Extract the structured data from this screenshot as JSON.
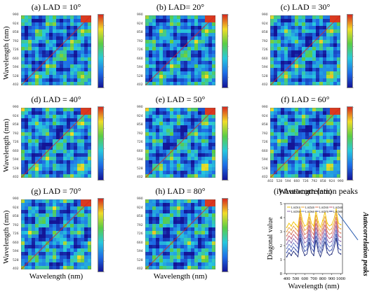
{
  "figure": {
    "panel_titles": [
      "(a) LAD = 10°",
      "(b) LAD= 20°",
      "(c) LAD = 30°",
      "(d) LAD = 40°",
      "(e) LAD = 50°",
      "(f) LAD = 60°",
      "(g) LAD = 70°",
      "(h) LAD = 80°"
    ],
    "ylabel": "Wavelength (nm)",
    "xlabel": "Wavelength (nm)",
    "axis_ticks": [
      "402",
      "528",
      "594",
      "660",
      "726",
      "792",
      "858",
      "924",
      "990"
    ],
    "colors": {
      "low": "#1a1aa8",
      "mid": "#2ecc40",
      "high": "#d7261e"
    }
  },
  "chart_data": [
    {
      "type": "heatmap",
      "title": "(a) LAD = 10°",
      "ylabel": "Wavelength (nm)"
    },
    {
      "type": "heatmap",
      "title": "(b) LAD= 20°"
    },
    {
      "type": "heatmap",
      "title": "(c) LAD = 30°"
    },
    {
      "type": "heatmap",
      "title": "(d) LAD = 40°",
      "ylabel": "Wavelength (nm)"
    },
    {
      "type": "heatmap",
      "title": "(e) LAD = 50°"
    },
    {
      "type": "heatmap",
      "title": "(f) LAD = 60°",
      "xlabel": "Wavelength (nm)"
    },
    {
      "type": "heatmap",
      "title": "(g) LAD = 70°",
      "ylabel": "Wavelength (nm)",
      "xlabel": "Wavelength (nm)"
    },
    {
      "type": "heatmap",
      "title": "(h) LAD = 80°",
      "xlabel": "Wavelength (nm)"
    },
    {
      "type": "line",
      "title": "(i) Autocorrelation peaks",
      "xlabel": "Wavelength (nm)",
      "ylabel": "Diagonal value",
      "annotation": "Autocorrelation peaks",
      "xlim": [
        380,
        1020
      ],
      "ylim": [
        0,
        5
      ],
      "xticks": [
        400,
        500,
        600,
        700,
        800,
        900,
        1000
      ],
      "yticks": [
        0,
        1,
        2,
        3,
        4,
        5
      ],
      "legend": [
        "LAD10",
        "LAD20",
        "LAD30",
        "LAD40",
        "LAD50",
        "LAD60",
        "LAD70",
        "LAD80"
      ],
      "x": [
        400,
        425,
        450,
        475,
        500,
        525,
        550,
        575,
        600,
        625,
        650,
        675,
        700,
        725,
        750,
        775,
        800,
        825,
        850,
        875,
        900,
        925,
        950,
        975,
        1000
      ],
      "series": [
        {
          "name": "LAD10",
          "color": "#f2c300",
          "values": [
            3.3,
            3.6,
            3.4,
            3.7,
            3.5,
            3.3,
            4.6,
            3.8,
            3.4,
            3.5,
            4.3,
            3.6,
            3.4,
            4.5,
            3.7,
            3.3,
            3.8,
            4.4,
            3.6,
            3.4,
            3.5,
            3.9,
            4.6,
            3.6,
            3.5
          ]
        },
        {
          "name": "LAD20",
          "color": "#e8a33d",
          "values": [
            3.0,
            3.3,
            3.1,
            3.4,
            3.2,
            3.0,
            4.3,
            3.5,
            3.1,
            3.2,
            4.0,
            3.3,
            3.1,
            4.2,
            3.4,
            3.0,
            3.5,
            4.1,
            3.3,
            3.1,
            3.2,
            3.6,
            4.3,
            3.3,
            3.2
          ]
        },
        {
          "name": "LAD30",
          "color": "#d97a5a",
          "values": [
            2.7,
            3.0,
            2.8,
            3.1,
            2.9,
            2.7,
            4.0,
            3.2,
            2.8,
            2.9,
            3.7,
            3.0,
            2.8,
            3.9,
            3.1,
            2.7,
            3.2,
            3.8,
            3.0,
            2.8,
            2.9,
            3.3,
            4.0,
            3.0,
            2.9
          ]
        },
        {
          "name": "LAD40",
          "color": "#c45c7a",
          "values": [
            2.4,
            2.7,
            2.5,
            2.8,
            2.6,
            2.4,
            3.7,
            2.9,
            2.5,
            2.6,
            3.4,
            2.7,
            2.5,
            3.6,
            2.8,
            2.4,
            2.9,
            3.5,
            2.7,
            2.5,
            2.6,
            3.0,
            3.7,
            2.7,
            2.6
          ]
        },
        {
          "name": "LAD50",
          "color": "#8b6bb0",
          "values": [
            2.1,
            2.4,
            2.2,
            2.5,
            2.3,
            2.1,
            3.4,
            2.6,
            2.2,
            2.3,
            3.1,
            2.4,
            2.2,
            3.3,
            2.5,
            2.1,
            2.6,
            3.2,
            2.4,
            2.2,
            2.3,
            2.7,
            3.4,
            2.4,
            2.3
          ]
        },
        {
          "name": "LAD60",
          "color": "#6a7ec8",
          "values": [
            1.8,
            2.1,
            1.9,
            2.2,
            2.0,
            1.8,
            3.1,
            2.3,
            1.9,
            2.0,
            2.8,
            2.1,
            1.9,
            3.0,
            2.2,
            1.8,
            2.3,
            2.9,
            2.1,
            1.9,
            2.0,
            2.4,
            3.1,
            2.1,
            2.0
          ]
        },
        {
          "name": "LAD70",
          "color": "#3f56b3",
          "values": [
            1.5,
            1.8,
            1.6,
            1.9,
            1.7,
            1.5,
            2.8,
            2.0,
            1.6,
            1.7,
            2.5,
            1.8,
            1.6,
            2.7,
            1.9,
            1.5,
            2.0,
            2.6,
            1.8,
            1.6,
            1.7,
            2.1,
            2.8,
            1.8,
            1.7
          ]
        },
        {
          "name": "LAD80",
          "color": "#1f2a78",
          "values": [
            1.2,
            1.5,
            1.3,
            1.6,
            1.4,
            1.2,
            2.5,
            1.7,
            1.3,
            1.4,
            2.2,
            1.5,
            1.3,
            2.4,
            1.6,
            1.2,
            1.7,
            2.3,
            1.5,
            1.3,
            1.4,
            1.8,
            2.5,
            1.5,
            1.4
          ]
        }
      ]
    }
  ]
}
